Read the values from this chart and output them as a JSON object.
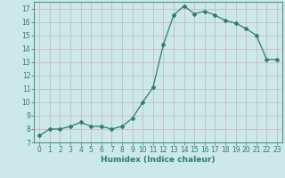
{
  "x": [
    0,
    1,
    2,
    3,
    4,
    5,
    6,
    7,
    8,
    9,
    10,
    11,
    12,
    13,
    14,
    15,
    16,
    17,
    18,
    19,
    20,
    21,
    22,
    23
  ],
  "y": [
    7.5,
    8.0,
    8.0,
    8.2,
    8.5,
    8.2,
    8.2,
    8.0,
    8.2,
    8.8,
    10.0,
    11.1,
    14.3,
    16.5,
    17.2,
    16.6,
    16.8,
    16.5,
    16.1,
    15.9,
    15.5,
    15.0,
    13.2,
    13.2
  ],
  "line_color": "#2e7d6e",
  "marker": "D",
  "markersize": 2,
  "linewidth": 0.9,
  "xlim": [
    -0.5,
    23.5
  ],
  "ylim": [
    7,
    17.5
  ],
  "yticks": [
    7,
    8,
    9,
    10,
    11,
    12,
    13,
    14,
    15,
    16,
    17
  ],
  "xticks": [
    0,
    1,
    2,
    3,
    4,
    5,
    6,
    7,
    8,
    9,
    10,
    11,
    12,
    13,
    14,
    15,
    16,
    17,
    18,
    19,
    20,
    21,
    22,
    23
  ],
  "xlabel": "Humidex (Indice chaleur)",
  "xlabel_fontsize": 6.5,
  "tick_fontsize": 5.5,
  "background_color": "#cce8e8",
  "grid_color": "#c8b4b4"
}
